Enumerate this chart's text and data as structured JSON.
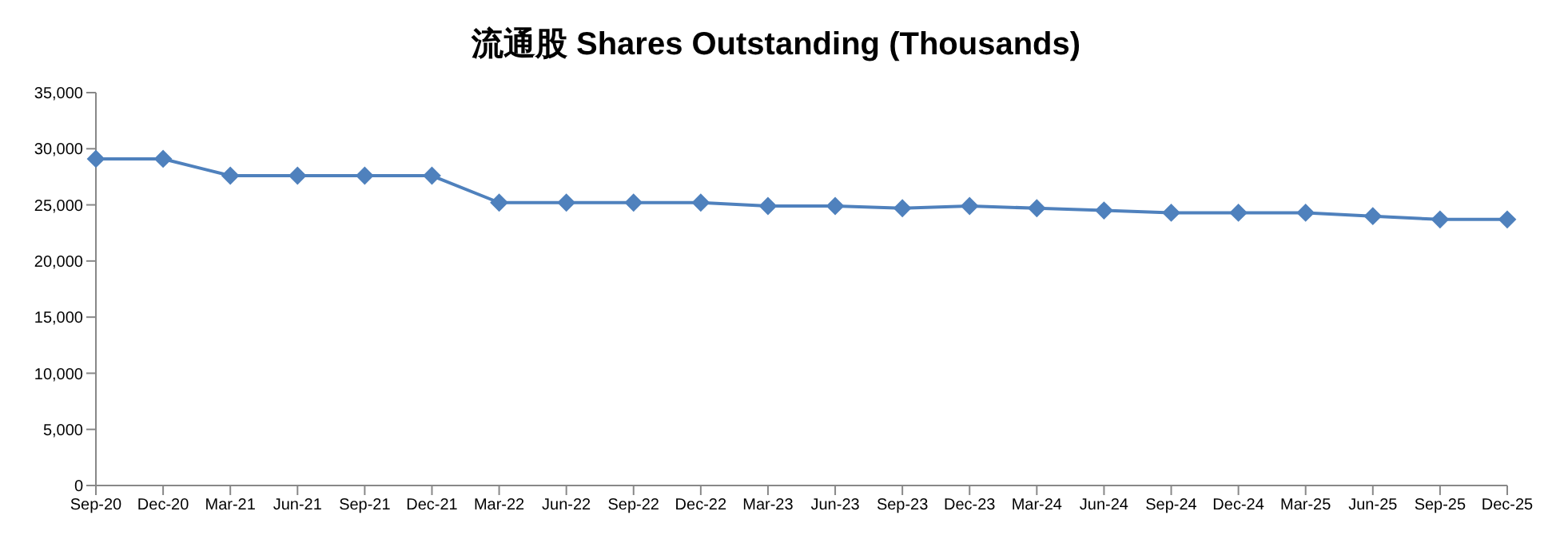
{
  "chart_data": {
    "type": "line",
    "title": "流通股 Shares Outstanding (Thousands)",
    "categories": [
      "Sep-20",
      "Dec-20",
      "Mar-21",
      "Jun-21",
      "Sep-21",
      "Dec-21",
      "Mar-22",
      "Jun-22",
      "Sep-22",
      "Dec-22",
      "Mar-23",
      "Jun-23",
      "Sep-23",
      "Dec-23",
      "Mar-24",
      "Jun-24",
      "Sep-24",
      "Dec-24",
      "Mar-25",
      "Jun-25",
      "Sep-25",
      "Dec-25"
    ],
    "series": [
      {
        "color": "#4f81bd",
        "values": [
          29100,
          29100,
          27600,
          27600,
          27600,
          27600,
          25200,
          25200,
          25200,
          25200,
          24900,
          24900,
          24700,
          24900,
          24700,
          24500,
          24300,
          24300,
          24300,
          24000,
          23700,
          23700
        ]
      }
    ],
    "ylim": [
      0,
      35000
    ],
    "yticks": [
      0,
      {
        "value": 5000,
        "label": "5,000"
      },
      {
        "value": 10000,
        "label": "10,000"
      },
      {
        "value": 15000,
        "label": "15,000"
      },
      {
        "value": 20000,
        "label": "20,000"
      },
      {
        "value": 25000,
        "label": "25,000"
      },
      {
        "value": 30000,
        "label": "30,000"
      },
      {
        "value": 35000,
        "label": "35,000"
      }
    ],
    "grid": false,
    "marker": "diamond",
    "line_style": "solid"
  }
}
